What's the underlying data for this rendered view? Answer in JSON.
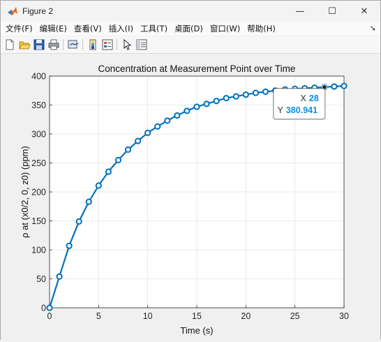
{
  "window": {
    "title": "Figure 2",
    "minimize_glyph": "—",
    "maximize_glyph": "☐",
    "close_glyph": "✕"
  },
  "menu": [
    {
      "label": "文件(F)"
    },
    {
      "label": "编辑(E)"
    },
    {
      "label": "查看(V)"
    },
    {
      "label": "插入(I)"
    },
    {
      "label": "工具(T)"
    },
    {
      "label": "桌面(D)"
    },
    {
      "label": "窗口(W)"
    },
    {
      "label": "帮助(H)"
    }
  ],
  "menu_arrow": "➘",
  "toolbar": {
    "icons": [
      "new-figure-icon",
      "open-file-icon",
      "save-icon",
      "print-icon",
      "link-plot-icon",
      "insert-colorbar-icon",
      "insert-legend-icon",
      "edit-plot-icon",
      "property-inspector-icon"
    ]
  },
  "colors": {
    "line": "#0072bd",
    "datatip_value": "#0e8fe0"
  },
  "chart_data": {
    "type": "line",
    "title": "Concentration at Measurement Point over Time",
    "xlabel": "Time (s)",
    "ylabel": "ρ at (x0/2, 0, z0) (ppm)",
    "xlim": [
      0,
      30
    ],
    "ylim": [
      0,
      400
    ],
    "xticks": [
      0,
      5,
      10,
      15,
      20,
      25,
      30
    ],
    "yticks": [
      0,
      50,
      100,
      150,
      200,
      250,
      300,
      350,
      400
    ],
    "grid": true,
    "marker": "circle",
    "series": [
      {
        "x": [
          0,
          1,
          2,
          3,
          4,
          5,
          6,
          7,
          8,
          9,
          10,
          11,
          12,
          13,
          14,
          15,
          16,
          17,
          18,
          19,
          20,
          21,
          22,
          23,
          24,
          25,
          26,
          27,
          28,
          29,
          30
        ],
        "values": [
          0,
          54,
          107,
          149,
          183,
          211,
          235,
          255,
          273,
          288,
          302,
          313,
          323,
          332,
          340,
          347,
          352,
          357,
          362,
          365,
          368,
          371,
          373,
          375,
          377,
          378,
          379,
          380,
          380.941,
          382,
          383
        ]
      }
    ],
    "datatip": {
      "x_label": "X",
      "x_value": "28",
      "y_label": "Y",
      "y_value": "380.941",
      "point_index": 28
    }
  }
}
